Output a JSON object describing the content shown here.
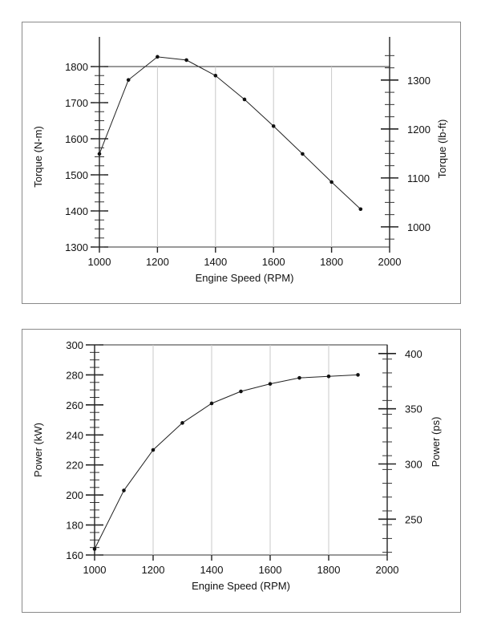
{
  "chart_data": [
    {
      "type": "line",
      "xlabel": "Engine Speed (RPM)",
      "ylabel": "Torque (N-m)",
      "y2label": "Torque (lb-ft)",
      "xlim": [
        1000,
        2000
      ],
      "ylim": [
        1300,
        1800
      ],
      "y2lim": [
        1000,
        1300
      ],
      "xticks": [
        1000,
        1200,
        1400,
        1600,
        1800,
        2000
      ],
      "yticks": [
        1300,
        1400,
        1500,
        1600,
        1700,
        1800
      ],
      "y2ticks": [
        1000,
        1100,
        1200,
        1300
      ],
      "grid": true,
      "series": [
        {
          "x": [
            1000,
            1100,
            1200,
            1300,
            1400,
            1500,
            1600,
            1700,
            1800,
            1900
          ],
          "y": [
            1558,
            1763,
            1827,
            1818,
            1775,
            1709,
            1635,
            1558,
            1480,
            1405
          ]
        }
      ]
    },
    {
      "type": "line",
      "xlabel": "Engine Speed (RPM)",
      "ylabel": "Power (kW)",
      "y2label": "Power (ps)",
      "xlim": [
        1000,
        2000
      ],
      "ylim": [
        160,
        300
      ],
      "y2lim": [
        250,
        400
      ],
      "xticks": [
        1000,
        1200,
        1400,
        1600,
        1800,
        2000
      ],
      "yticks": [
        160,
        180,
        200,
        220,
        240,
        260,
        280,
        300
      ],
      "y2ticks": [
        250,
        300,
        350,
        400
      ],
      "grid": true,
      "series": [
        {
          "x": [
            1000,
            1100,
            1200,
            1300,
            1400,
            1500,
            1600,
            1700,
            1800,
            1900
          ],
          "y": [
            164,
            203,
            230,
            248,
            261,
            269,
            274,
            278,
            279,
            280
          ]
        }
      ]
    }
  ]
}
